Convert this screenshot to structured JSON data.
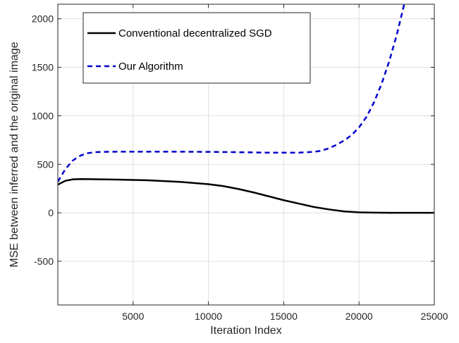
{
  "chart_data": {
    "type": "line",
    "title": "",
    "xlabel": "Iteration Index",
    "ylabel": "MSE between inferred and the original image",
    "xlim": [
      0,
      25000
    ],
    "ylim": [
      -950,
      2150
    ],
    "xticks": [
      5000,
      10000,
      15000,
      20000,
      25000
    ],
    "xtick_labels": [
      "5000",
      "10000",
      "15000",
      "20000",
      "25000"
    ],
    "yticks": [
      -500,
      0,
      500,
      1000,
      1500,
      2000
    ],
    "ytick_labels": [
      "-500",
      "0",
      "500",
      "1000",
      "1500",
      "2000"
    ],
    "grid": true,
    "legend_position": "top-left",
    "series": [
      {
        "name": "Conventional decentralized SGD",
        "color": "#000000",
        "style": "solid",
        "x": [
          0,
          500,
          1000,
          1500,
          2500,
          4000,
          6000,
          8000,
          10000,
          11000,
          12000,
          13000,
          14000,
          15000,
          16000,
          17000,
          18000,
          19000,
          20000,
          21000,
          22000,
          23000,
          24000,
          25000
        ],
        "y": [
          290,
          330,
          345,
          348,
          346,
          342,
          335,
          320,
          295,
          275,
          245,
          210,
          170,
          130,
          95,
          60,
          35,
          15,
          5,
          2,
          0,
          0,
          0,
          0
        ]
      },
      {
        "name": "Our Algorithm",
        "color": "#0000cd",
        "style": "dashed",
        "x": [
          0,
          500,
          1000,
          1500,
          2000,
          2500,
          3000,
          4000,
          6000,
          8000,
          10000,
          12000,
          14000,
          16000,
          17000,
          17500,
          18000,
          18500,
          19000,
          19500,
          20000,
          20500,
          21000,
          21500,
          22000,
          22500,
          23000
        ],
        "y": [
          320,
          450,
          540,
          590,
          615,
          625,
          628,
          630,
          630,
          630,
          628,
          625,
          620,
          620,
          628,
          640,
          665,
          700,
          745,
          800,
          880,
          990,
          1140,
          1330,
          1560,
          1830,
          2150
        ]
      }
    ]
  }
}
